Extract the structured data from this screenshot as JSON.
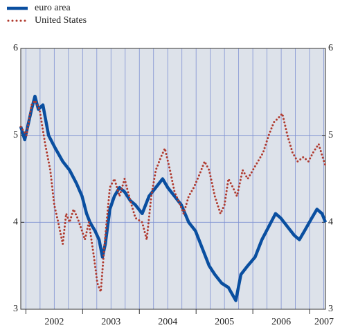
{
  "chart_data": {
    "type": "line",
    "series": [
      {
        "name": "euro area",
        "color": "#0a4fa0",
        "style": "solid",
        "x": [
          2001.91,
          2001.98,
          2002.1,
          2002.16,
          2002.22,
          2002.3,
          2002.4,
          2002.52,
          2002.65,
          2002.77,
          2002.89,
          2002.99,
          2003.07,
          2003.13,
          2003.22,
          2003.29,
          2003.35,
          2003.4,
          2003.48,
          2003.56,
          2003.65,
          2003.74,
          2003.84,
          2003.93,
          2004.05,
          2004.17,
          2004.29,
          2004.41,
          2004.5,
          2004.62,
          2004.74,
          2004.87,
          2004.99,
          2005.11,
          2005.23,
          2005.33,
          2005.45,
          2005.57,
          2005.7,
          2005.79,
          2005.91,
          2006.04,
          2006.16,
          2006.28,
          2006.4,
          2006.49,
          2006.61,
          2006.73,
          2006.82,
          2006.91,
          2007.04,
          2007.13,
          2007.22,
          2007.28
        ],
        "values": [
          5.1,
          4.95,
          5.3,
          5.45,
          5.3,
          5.35,
          5.0,
          4.85,
          4.7,
          4.6,
          4.45,
          4.3,
          4.1,
          4.0,
          3.9,
          3.8,
          3.6,
          3.75,
          4.15,
          4.3,
          4.4,
          4.35,
          4.25,
          4.2,
          4.1,
          4.3,
          4.4,
          4.5,
          4.4,
          4.3,
          4.2,
          4.0,
          3.9,
          3.7,
          3.5,
          3.4,
          3.3,
          3.25,
          3.1,
          3.4,
          3.5,
          3.6,
          3.8,
          3.95,
          4.1,
          4.05,
          3.95,
          3.85,
          3.8,
          3.9,
          4.05,
          4.15,
          4.1,
          4.0
        ]
      },
      {
        "name": "United States",
        "color": "#b03a2e",
        "style": "dotted",
        "x": [
          2001.91,
          2002.01,
          2002.1,
          2002.16,
          2002.24,
          2002.34,
          2002.43,
          2002.5,
          2002.57,
          2002.65,
          2002.71,
          2002.77,
          2002.84,
          2002.91,
          2002.99,
          2003.04,
          2003.11,
          2003.2,
          2003.26,
          2003.32,
          2003.38,
          2003.48,
          2003.56,
          2003.65,
          2003.74,
          2003.84,
          2003.93,
          2004.05,
          2004.13,
          2004.21,
          2004.29,
          2004.38,
          2004.45,
          2004.54,
          2004.62,
          2004.72,
          2004.78,
          2004.87,
          2004.96,
          2005.06,
          2005.15,
          2005.23,
          2005.33,
          2005.43,
          2005.5,
          2005.57,
          2005.65,
          2005.72,
          2005.82,
          2005.91,
          2006.0,
          2006.09,
          2006.18,
          2006.28,
          2006.37,
          2006.45,
          2006.52,
          2006.61,
          2006.7,
          2006.79,
          2006.89,
          2006.98,
          2007.06,
          2007.16,
          2007.23,
          2007.28
        ],
        "values": [
          5.1,
          5.0,
          5.35,
          5.4,
          5.3,
          4.9,
          4.6,
          4.2,
          4.0,
          3.75,
          4.1,
          4.0,
          4.15,
          4.05,
          3.9,
          3.8,
          4.0,
          3.6,
          3.3,
          3.2,
          3.7,
          4.4,
          4.5,
          4.3,
          4.5,
          4.25,
          4.05,
          4.0,
          3.8,
          4.3,
          4.6,
          4.75,
          4.85,
          4.6,
          4.35,
          4.2,
          4.1,
          4.3,
          4.4,
          4.55,
          4.7,
          4.6,
          4.3,
          4.1,
          4.2,
          4.5,
          4.4,
          4.3,
          4.6,
          4.5,
          4.6,
          4.7,
          4.8,
          5.0,
          5.15,
          5.2,
          5.25,
          5.0,
          4.8,
          4.7,
          4.75,
          4.7,
          4.8,
          4.9,
          4.75,
          4.65
        ]
      }
    ],
    "xlim": [
      2001.91,
      2007.28
    ],
    "xticks": [
      2002,
      2003,
      2004,
      2005,
      2006,
      2007
    ],
    "ylim": [
      3,
      6
    ],
    "yticks": [
      3,
      4,
      5,
      6
    ],
    "y2lim": [
      3,
      6
    ],
    "y2ticks": [
      3,
      4,
      5,
      6
    ],
    "grid": true,
    "legend": "top-left"
  }
}
